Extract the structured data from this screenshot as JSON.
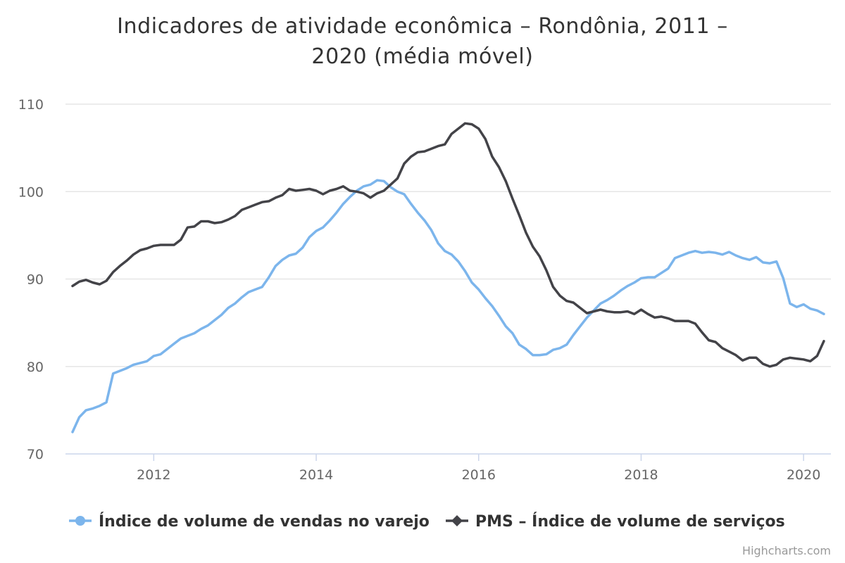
{
  "chart_data": {
    "type": "line",
    "title_lines": [
      "Indicadores de atividade econômica – Rondônia, 2011 –",
      "2020 (média móvel)"
    ],
    "ylim": [
      70,
      110
    ],
    "y_ticks": [
      "70",
      "80",
      "90",
      "100",
      "110"
    ],
    "x_tick_labels": [
      "2012",
      "2014",
      "2016",
      "2018",
      "2020"
    ],
    "x_start": "2011-01",
    "x_end": "2020-04",
    "grid": true,
    "legend_position": "bottom-center",
    "credits": "Highcharts.com",
    "series": [
      {
        "name": "Índice de volume de vendas no varejo",
        "color": "#7cb5ec",
        "marker": "circle",
        "values": [
          72.5,
          74.2,
          75.0,
          75.2,
          75.5,
          75.9,
          79.2,
          79.5,
          79.8,
          80.2,
          80.4,
          80.6,
          81.2,
          81.4,
          82.0,
          82.6,
          83.2,
          83.5,
          83.8,
          84.3,
          84.7,
          85.3,
          85.9,
          86.7,
          87.2,
          87.9,
          88.5,
          88.8,
          89.1,
          90.2,
          91.5,
          92.2,
          92.7,
          92.9,
          93.6,
          94.8,
          95.5,
          95.9,
          96.7,
          97.6,
          98.6,
          99.4,
          100.1,
          100.6,
          100.8,
          101.3,
          101.2,
          100.5,
          100.0,
          99.7,
          98.6,
          97.6,
          96.7,
          95.6,
          94.1,
          93.2,
          92.8,
          92.0,
          90.9,
          89.6,
          88.8,
          87.8,
          86.9,
          85.8,
          84.6,
          83.8,
          82.5,
          82.0,
          81.3,
          81.3,
          81.4,
          81.9,
          82.1,
          82.5,
          83.6,
          84.6,
          85.6,
          86.4,
          87.2,
          87.6,
          88.1,
          88.7,
          89.2,
          89.6,
          90.1,
          90.2,
          90.2,
          90.7,
          91.2,
          92.4,
          92.7,
          93.0,
          93.2,
          93.0,
          93.1,
          93.0,
          92.8,
          93.1,
          92.7,
          92.4,
          92.2,
          92.5,
          91.9,
          91.8,
          92.0,
          90.1,
          87.2,
          86.8,
          87.1,
          86.6,
          86.4,
          86.0
        ]
      },
      {
        "name": "PMS – Índice de volume de serviços",
        "color": "#434348",
        "marker": "diamond",
        "values": [
          89.2,
          89.7,
          89.9,
          89.6,
          89.4,
          89.8,
          90.8,
          91.5,
          92.1,
          92.8,
          93.3,
          93.5,
          93.8,
          93.9,
          93.9,
          93.9,
          94.5,
          95.9,
          96.0,
          96.6,
          96.6,
          96.4,
          96.5,
          96.8,
          97.2,
          97.9,
          98.2,
          98.5,
          98.8,
          98.9,
          99.3,
          99.6,
          100.3,
          100.1,
          100.2,
          100.3,
          100.1,
          99.7,
          100.1,
          100.3,
          100.6,
          100.1,
          100.0,
          99.8,
          99.3,
          99.8,
          100.1,
          100.8,
          101.5,
          103.2,
          104.0,
          104.5,
          104.6,
          104.9,
          105.2,
          105.4,
          106.6,
          107.2,
          107.8,
          107.7,
          107.2,
          106.0,
          104.0,
          102.8,
          101.2,
          99.2,
          97.3,
          95.3,
          93.7,
          92.6,
          91.0,
          89.1,
          88.1,
          87.5,
          87.3,
          86.7,
          86.1,
          86.3,
          86.5,
          86.3,
          86.2,
          86.2,
          86.3,
          86.0,
          86.5,
          86.0,
          85.6,
          85.7,
          85.5,
          85.2,
          85.2,
          85.2,
          84.9,
          83.9,
          83.0,
          82.8,
          82.1,
          81.7,
          81.3,
          80.7,
          81.0,
          81.0,
          80.3,
          80.0,
          80.2,
          80.8,
          81.0,
          80.9,
          80.8,
          80.6,
          81.2,
          82.9
        ]
      }
    ]
  }
}
